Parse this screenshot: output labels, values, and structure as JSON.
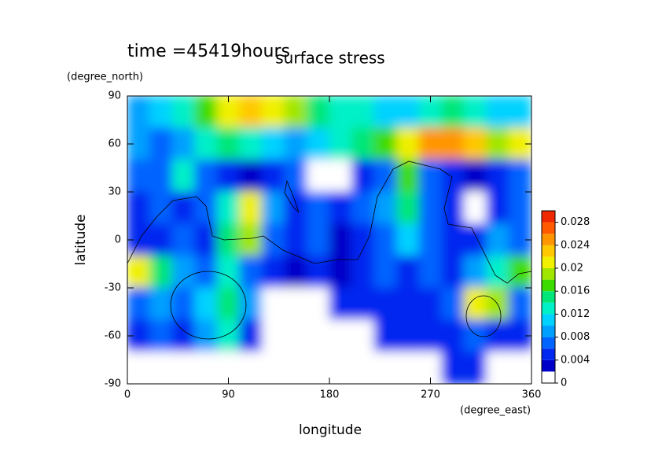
{
  "chart_data": {
    "type": "contour",
    "title": "surface stress",
    "subtitle": "time =45419hours",
    "x_label": "longitude",
    "y_label": "latitude",
    "x_unit": "(degree_east)",
    "y_unit": "(degree_north)",
    "x": [
      10,
      30,
      50,
      70,
      90,
      110,
      130,
      150,
      170,
      190,
      210,
      230,
      250,
      270,
      290,
      310,
      330,
      350
    ],
    "y": [
      80,
      60,
      40,
      20,
      0,
      -20,
      -40,
      -60,
      -80
    ],
    "z": [
      [
        0.008,
        0.01,
        0.012,
        0.016,
        0.02,
        0.022,
        0.02,
        0.018,
        0.014,
        0.012,
        0.012,
        0.01,
        0.01,
        0.012,
        0.014,
        0.012,
        0.01,
        0.01
      ],
      [
        0.008,
        0.006,
        0.008,
        0.012,
        0.014,
        0.012,
        0.01,
        0.008,
        0.01,
        0.012,
        0.014,
        0.016,
        0.02,
        0.024,
        0.024,
        0.022,
        0.018,
        0.02
      ],
      [
        0.006,
        0.006,
        0.012,
        0.006,
        0.004,
        0.002,
        0.004,
        0.006,
        0.001,
        0.001,
        0.004,
        0.006,
        0.016,
        0.006,
        0.004,
        0.003,
        0.004,
        0.006
      ],
      [
        0.004,
        0.006,
        0.004,
        0.006,
        0.012,
        0.02,
        0.008,
        0.004,
        0.006,
        0.004,
        0.006,
        0.008,
        0.014,
        0.006,
        0.004,
        0.001,
        0.004,
        0.006
      ],
      [
        0.004,
        0.004,
        0.006,
        0.004,
        0.014,
        0.018,
        0.006,
        0.004,
        0.006,
        0.002,
        0.004,
        0.006,
        0.01,
        0.006,
        0.004,
        0.004,
        0.008,
        0.006
      ],
      [
        0.02,
        0.014,
        0.008,
        0.006,
        0.012,
        0.006,
        0.004,
        0.002,
        0.004,
        0.002,
        0.004,
        0.006,
        0.004,
        0.006,
        0.004,
        0.008,
        0.012,
        0.016
      ],
      [
        0.006,
        0.008,
        0.006,
        0.01,
        0.014,
        0.008,
        0.001,
        0.001,
        0.001,
        0.004,
        0.004,
        0.004,
        0.004,
        0.004,
        0.006,
        0.02,
        0.018,
        0.006
      ],
      [
        0.004,
        0.006,
        0.004,
        0.008,
        0.012,
        0.004,
        0.001,
        0.001,
        0.001,
        0.001,
        0.001,
        0.004,
        0.004,
        0.004,
        0.004,
        0.006,
        0.004,
        0.004
      ],
      [
        0,
        0,
        0,
        0,
        0,
        0,
        0,
        0,
        0,
        0,
        0,
        0,
        0,
        0,
        0.004,
        0.004,
        0,
        0
      ]
    ],
    "xlim": [
      0,
      360
    ],
    "ylim": [
      -90,
      90
    ],
    "xticks": [
      0,
      90,
      180,
      270,
      360
    ],
    "yticks": [
      -90,
      -60,
      -30,
      0,
      30,
      60,
      90
    ],
    "levels": [
      0,
      0.002,
      0.004,
      0.006,
      0.008,
      0.01,
      0.012,
      0.014,
      0.016,
      0.018,
      0.02,
      0.022,
      0.024,
      0.026,
      0.028,
      0.03
    ],
    "colors": [
      "#ffffff",
      "#0000c8",
      "#0028f0",
      "#0064ff",
      "#00a0ff",
      "#00d2ff",
      "#00f0c8",
      "#00e678",
      "#3cdc00",
      "#a0e600",
      "#f0f000",
      "#ffc800",
      "#ff9600",
      "#ff5a00",
      "#f02800"
    ],
    "cbar_ticks": [
      0,
      0.004,
      0.008,
      0.012,
      0.016,
      0.02,
      0.024,
      0.028
    ]
  }
}
